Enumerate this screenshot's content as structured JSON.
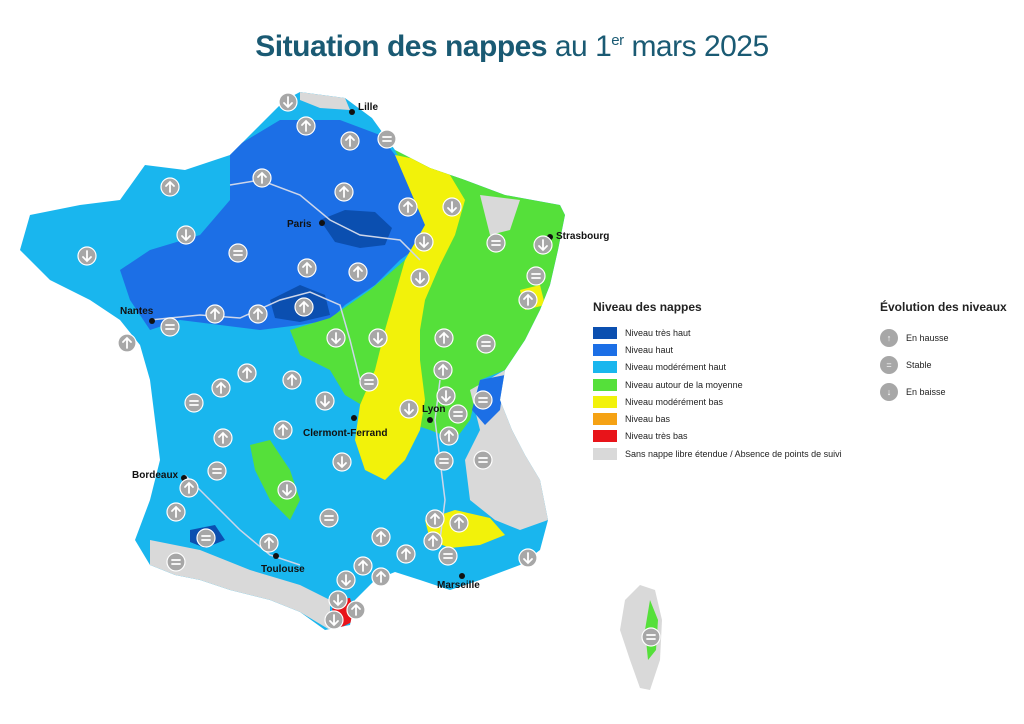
{
  "title": {
    "bold": "Situation des nappes",
    "prefix": "au 1",
    "sup": "er",
    "suffix": "mars 2025"
  },
  "colors": {
    "tres_haut": "#0b4fb0",
    "haut": "#1c6fe6",
    "moderement_haut": "#19b6ee",
    "moyenne": "#55e03a",
    "moderement_bas": "#f2f20a",
    "bas": "#f5a214",
    "tres_bas": "#e8141a",
    "sans_nappe": "#d9d9d9",
    "icon": "#a7a7a7"
  },
  "legend_levels": {
    "title": "Niveau des nappes",
    "items": [
      {
        "label": "Niveau très haut",
        "color": "#0b4fb0"
      },
      {
        "label": "Niveau haut",
        "color": "#1c6fe6"
      },
      {
        "label": "Niveau modérément haut",
        "color": "#19b6ee"
      },
      {
        "label": "Niveau autour de la moyenne",
        "color": "#55e03a"
      },
      {
        "label": "Niveau modérément bas",
        "color": "#f2f20a"
      },
      {
        "label": "Niveau bas",
        "color": "#f5a214"
      },
      {
        "label": "Niveau très bas",
        "color": "#e8141a"
      },
      {
        "label": "Sans nappe libre étendue / Absence de points de suivi",
        "color": "#d9d9d9"
      }
    ]
  },
  "legend_evolution": {
    "title": "Évolution des niveaux",
    "items": [
      {
        "label": "En hausse",
        "icon": "arrow-up-icon"
      },
      {
        "label": "Stable",
        "icon": "equals-icon"
      },
      {
        "label": "En baisse",
        "icon": "arrow-down-icon"
      }
    ]
  },
  "cities": [
    "Lille",
    "Paris",
    "Strasbourg",
    "Nantes",
    "Clermont-Ferrand",
    "Lyon",
    "Bordeaux",
    "Toulouse",
    "Marseille"
  ]
}
